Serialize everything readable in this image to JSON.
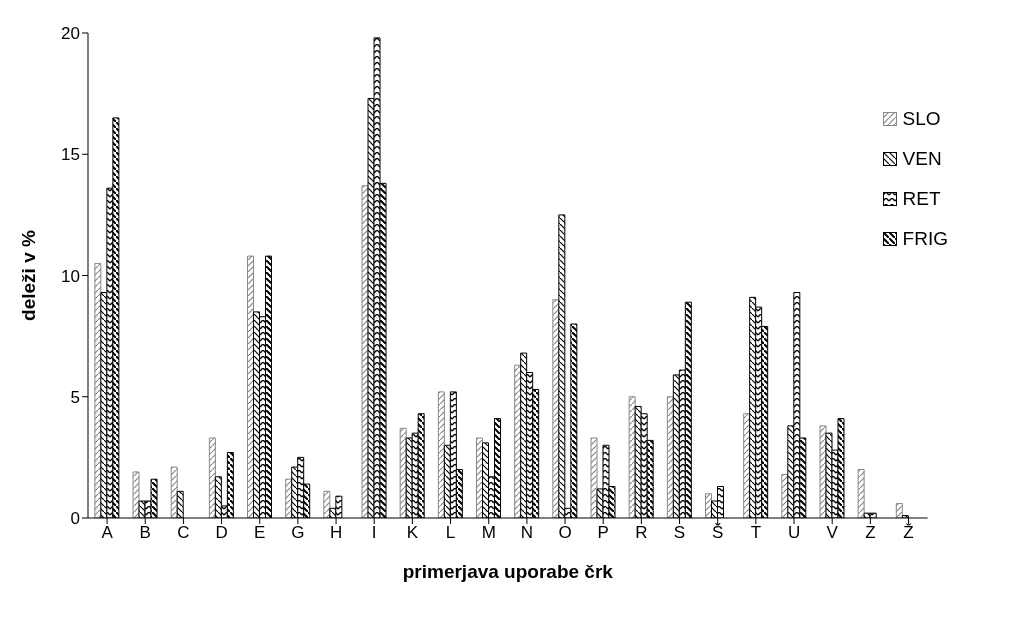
{
  "chart_data": {
    "type": "bar",
    "xlabel": "primerjava uporabe črk",
    "ylabel": "deleži v %",
    "categories": [
      "A",
      "B",
      "C",
      "D",
      "E",
      "G",
      "H",
      "I",
      "K",
      "L",
      "M",
      "N",
      "O",
      "P",
      "R",
      "S",
      "Š",
      "T",
      "U",
      "V",
      "Z",
      "Ž"
    ],
    "series": [
      {
        "name": "SLO",
        "color": "#888888",
        "values": [
          10.5,
          1.9,
          2.1,
          3.3,
          10.8,
          1.6,
          1.1,
          13.7,
          3.7,
          5.2,
          3.3,
          6.3,
          9.0,
          3.3,
          5.0,
          5.0,
          1.0,
          4.3,
          1.8,
          3.8,
          2.0,
          0.6
        ]
      },
      {
        "name": "VEN",
        "color": "#000000",
        "values": [
          9.3,
          0.7,
          1.1,
          1.7,
          8.5,
          2.1,
          0.4,
          17.3,
          3.3,
          3.0,
          3.1,
          6.8,
          12.5,
          1.2,
          4.6,
          5.9,
          0.7,
          9.1,
          3.8,
          3.5,
          0.2,
          0.1
        ]
      },
      {
        "name": "RET",
        "color": "#000000",
        "values": [
          13.6,
          0.7,
          0,
          0.5,
          8.3,
          2.5,
          0.9,
          19.8,
          3.5,
          5.2,
          1.7,
          6.0,
          0.4,
          3.0,
          4.3,
          6.1,
          1.3,
          8.7,
          9.3,
          2.8,
          0.2,
          0
        ]
      },
      {
        "name": "FRIG",
        "color": "#000000",
        "values": [
          16.5,
          1.6,
          0,
          2.7,
          10.8,
          1.4,
          0,
          13.8,
          4.3,
          2.0,
          4.1,
          5.3,
          8.0,
          1.3,
          3.2,
          8.9,
          0,
          7.9,
          3.3,
          4.1,
          0,
          0
        ]
      }
    ],
    "ylim": [
      0,
      20
    ],
    "yticks": [
      0,
      5,
      10,
      15,
      20
    ],
    "grid": false,
    "legend": "top right"
  }
}
